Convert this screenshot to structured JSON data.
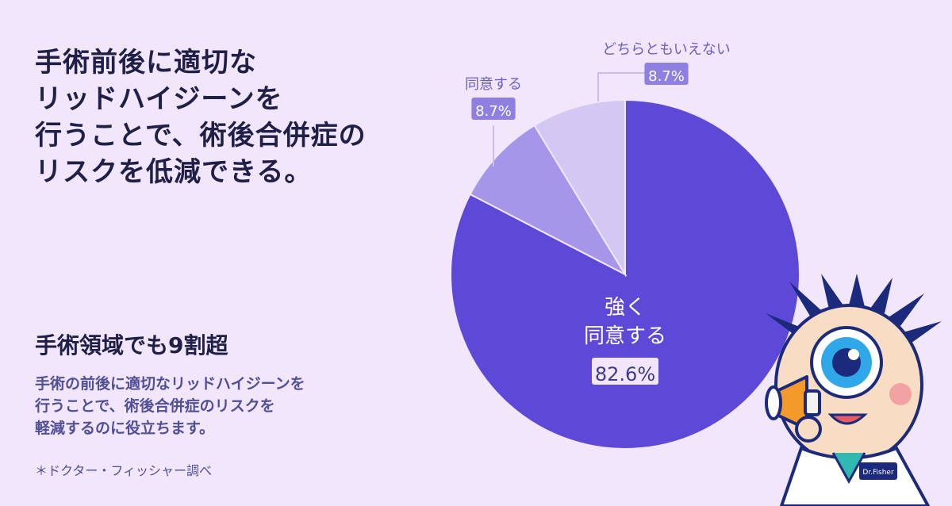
{
  "headline": [
    "手術前後に適切な",
    "リッドハイジーンを",
    "行うことで、術後合併症の",
    "リスクを低減できる。"
  ],
  "subheading": "手術領域でも9割超",
  "body": [
    "手術の前後に適切なリッドハイジーンを",
    "行うことで、術後合併症のリスクを",
    "軽減するのに役立ちます。"
  ],
  "source": "＊ドクター・フィッシャー調べ",
  "colors": {
    "background": "#f1e6fb",
    "strongly_agree": "#5e48d8",
    "agree": "#a596ea",
    "neutral": "#d3c8f3",
    "text_dark": "#1f1f47",
    "text_body": "#504f97"
  },
  "chart_data": {
    "type": "pie",
    "start": "12 o'clock, clockwise",
    "slices": [
      {
        "label_lines": [
          "強く",
          "同意する"
        ],
        "value": 82.6,
        "value_label": "82.6%",
        "color": "#5e48d8"
      },
      {
        "label_lines": [
          "同意する"
        ],
        "value": 8.7,
        "value_label": "8.7%",
        "color": "#a596ea"
      },
      {
        "label_lines": [
          "どちらともいえない"
        ],
        "value": 8.7,
        "value_label": "8.7%",
        "color": "#d3c8f3"
      }
    ]
  },
  "mascot": {
    "icon": "doctor-eyeball-mascot-with-megaphone",
    "badge_text": "Dr.Fisher"
  }
}
